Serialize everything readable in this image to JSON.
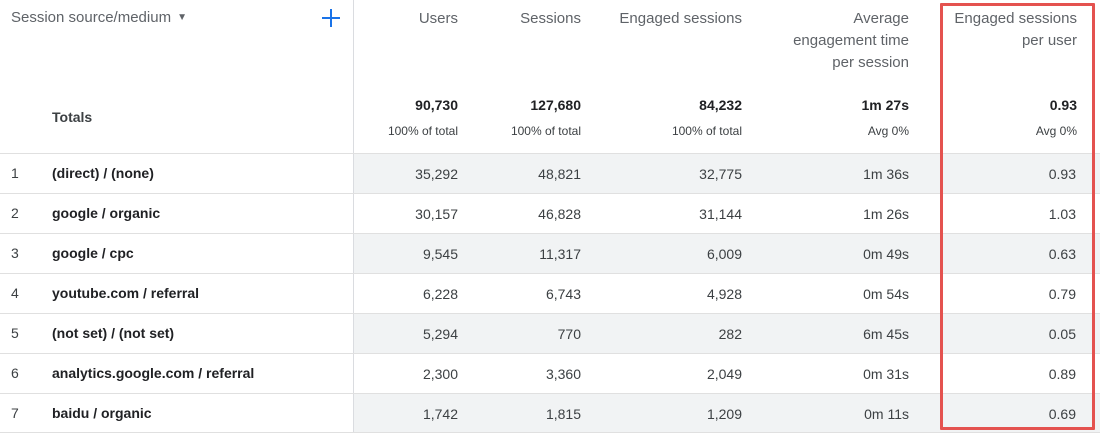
{
  "dimension": {
    "header_label": "Session source/medium",
    "caret": "▼",
    "add_dimension_icon": "plus-icon",
    "totals_label": "Totals"
  },
  "columns": [
    {
      "key": "users",
      "title": "Users",
      "total": "90,730",
      "sub": "100% of total"
    },
    {
      "key": "sessions",
      "title": "Sessions",
      "total": "127,680",
      "sub": "100% of total"
    },
    {
      "key": "engaged_sessions",
      "title": "Engaged sessions",
      "total": "84,232",
      "sub": "100% of total"
    },
    {
      "key": "avg_engagement",
      "title": "Average\nengagement time\nper session",
      "total": "1m 27s",
      "sub": "Avg 0%"
    },
    {
      "key": "engaged_per_user",
      "title": "Engaged sessions\nper user",
      "total": "0.93",
      "sub": "Avg 0%"
    }
  ],
  "rows": [
    {
      "index": "1",
      "source": "(direct) / (none)",
      "users": "35,292",
      "sessions": "48,821",
      "engaged_sessions": "32,775",
      "avg_engagement": "1m 36s",
      "engaged_per_user": "0.93"
    },
    {
      "index": "2",
      "source": "google / organic",
      "users": "30,157",
      "sessions": "46,828",
      "engaged_sessions": "31,144",
      "avg_engagement": "1m 26s",
      "engaged_per_user": "1.03"
    },
    {
      "index": "3",
      "source": "google / cpc",
      "users": "9,545",
      "sessions": "11,317",
      "engaged_sessions": "6,009",
      "avg_engagement": "0m 49s",
      "engaged_per_user": "0.63"
    },
    {
      "index": "4",
      "source": "youtube.com / referral",
      "users": "6,228",
      "sessions": "6,743",
      "engaged_sessions": "4,928",
      "avg_engagement": "0m 54s",
      "engaged_per_user": "0.79"
    },
    {
      "index": "5",
      "source": "(not set) / (not set)",
      "users": "5,294",
      "sessions": "770",
      "engaged_sessions": "282",
      "avg_engagement": "6m 45s",
      "engaged_per_user": "0.05"
    },
    {
      "index": "6",
      "source": "analytics.google.com / referral",
      "users": "2,300",
      "sessions": "3,360",
      "engaged_sessions": "2,049",
      "avg_engagement": "0m 31s",
      "engaged_per_user": "0.89"
    },
    {
      "index": "7",
      "source": "baidu / organic",
      "users": "1,742",
      "sessions": "1,815",
      "engaged_sessions": "1,209",
      "avg_engagement": "0m 11s",
      "engaged_per_user": "0.69"
    }
  ],
  "colors": {
    "accent": "#1a73e8",
    "highlight_border": "#e4524f",
    "row_shade": "#f1f3f4"
  }
}
